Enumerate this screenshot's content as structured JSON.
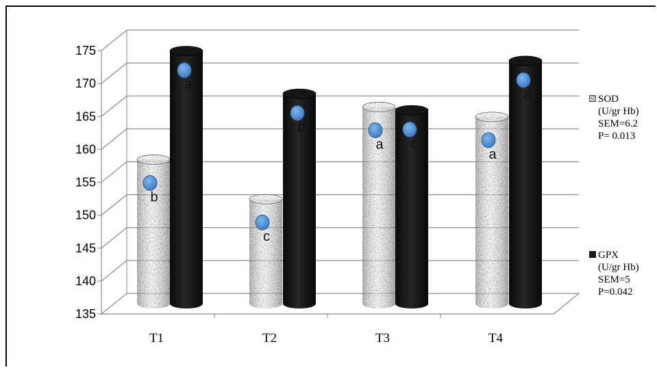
{
  "chart_data": {
    "type": "bar",
    "categories": [
      "T1",
      "T2",
      "T3",
      "T4"
    ],
    "series": [
      {
        "name": "SOD",
        "values": [
          157.5,
          151.5,
          165.5,
          164.0
        ],
        "letters": [
          "b",
          "c",
          "a",
          "a"
        ],
        "color": "#b0b0b0"
      },
      {
        "name": "GPX",
        "values": [
          174.0,
          167.5,
          165.0,
          172.5
        ],
        "letters": [
          "a",
          "b",
          "c",
          "a"
        ],
        "color": "#1a1a1a"
      }
    ],
    "ylim": [
      135,
      175
    ],
    "yticks": [
      135,
      140,
      145,
      150,
      155,
      160,
      165,
      170,
      175
    ],
    "grid": true,
    "legend_position": "right",
    "legend": [
      {
        "swatch": "SOD",
        "lines": [
          "SOD",
          "(U/gr Hb)",
          "SEM=6.2",
          "P= 0.013"
        ]
      },
      {
        "swatch": "GPX",
        "lines": [
          "GPX",
          "(U/gr Hb)",
          "SEM=5",
          "P=0.042"
        ]
      }
    ],
    "title": "",
    "xlabel": "",
    "ylabel": ""
  }
}
